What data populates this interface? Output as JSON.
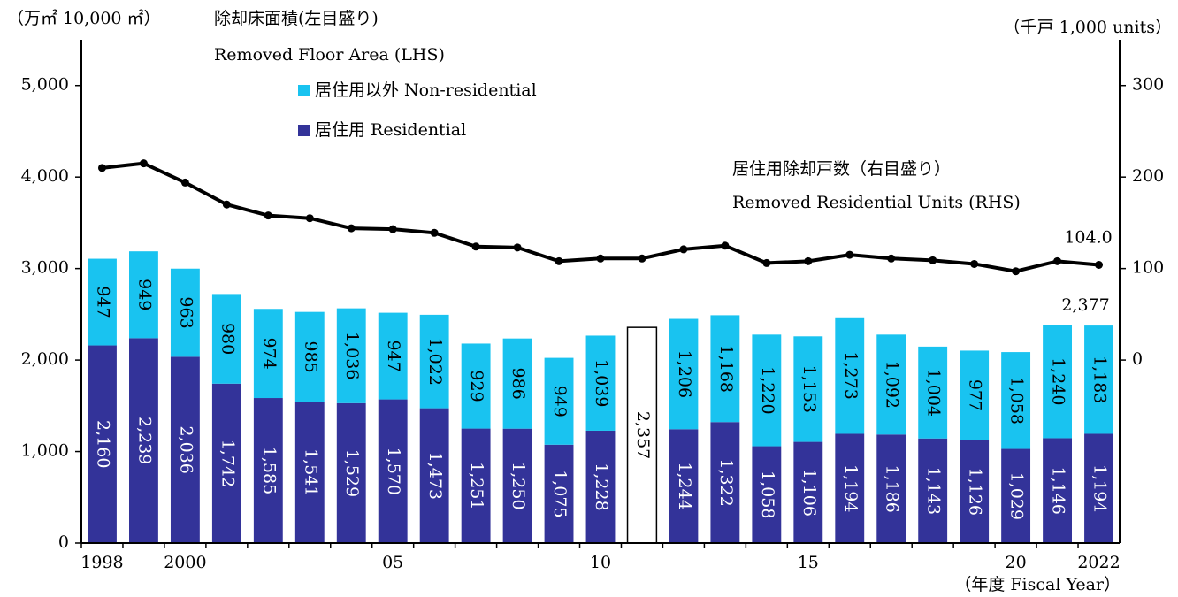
{
  "chart_data": {
    "type": "bar",
    "y_unit": "（万㎡ 10,000 ㎡）",
    "y2_unit": "（千戸 1,000 units）",
    "y_label": [
      "除却床面積(左目盛り)",
      "Removed Floor Area (LHS)"
    ],
    "x_label": "（年度 Fiscal Year）",
    "categories": [
      "1998",
      null,
      "2000",
      null,
      null,
      null,
      null,
      "05",
      null,
      null,
      null,
      null,
      "10",
      null,
      null,
      null,
      null,
      "15",
      null,
      null,
      null,
      null,
      "20",
      null,
      "2022"
    ],
    "series": [
      {
        "name": "居住用 Residential",
        "color": "#333399",
        "label_color": "#ffffff",
        "values": [
          2160,
          2239,
          2036,
          1742,
          1585,
          1541,
          1529,
          1570,
          1473,
          1251,
          1250,
          1075,
          1228,
          null,
          1244,
          1322,
          1058,
          1106,
          1194,
          1186,
          1143,
          1126,
          1029,
          1146,
          1194
        ],
        "value_labels": [
          "2,160",
          "2,239",
          "2,036",
          "1,742",
          "1,585",
          "1,541",
          "1,529",
          "1,570",
          "1,473",
          "1,251",
          "1,250",
          "1,075",
          "1,228",
          null,
          "1,244",
          "1,322",
          "1,058",
          "1,106",
          "1,194",
          "1,186",
          "1,143",
          "1,126",
          "1,029",
          "1,146",
          "1,194"
        ]
      },
      {
        "name": "居住用以外 Non-residential",
        "color": "#19c3f0",
        "label_color": "#000000",
        "values": [
          947,
          949,
          963,
          980,
          974,
          985,
          1036,
          947,
          1022,
          929,
          986,
          949,
          1039,
          null,
          1206,
          1168,
          1220,
          1153,
          1273,
          1092,
          1004,
          977,
          1058,
          1240,
          1183
        ],
        "value_labels": [
          "947",
          "949",
          "963",
          "980",
          "974",
          "985",
          "1,036",
          "947",
          "1,022",
          "929",
          "986",
          "949",
          "1,039",
          null,
          "1,206",
          "1,168",
          "1,220",
          "1,153",
          "1,273",
          "1,092",
          "1,004",
          "977",
          "1,058",
          "1,240",
          "1,183"
        ]
      },
      {
        "color": "#ffffff",
        "label_color": "#000000",
        "values": [
          null,
          null,
          null,
          null,
          null,
          null,
          null,
          null,
          null,
          null,
          null,
          null,
          null,
          2357,
          null,
          null,
          null,
          null,
          null,
          null,
          null,
          null,
          null,
          null,
          null
        ],
        "value_labels": [
          null,
          null,
          null,
          null,
          null,
          null,
          null,
          null,
          null,
          null,
          null,
          null,
          null,
          "2,357",
          null,
          null,
          null,
          null,
          null,
          null,
          null,
          null,
          null,
          null,
          null
        ]
      },
      {
        "name": "居住用除却戸数（右目盛り）",
        "name_en": "Removed Residential Units (RHS)",
        "type": "line",
        "axis": "y2",
        "color": "#000000",
        "values": [
          210,
          215,
          194,
          170,
          158,
          155,
          144,
          143,
          139,
          124,
          123,
          108,
          111,
          111,
          121,
          125,
          106,
          108,
          115,
          111,
          109,
          105,
          97,
          108,
          104
        ],
        "value_labels": [
          null,
          null,
          null,
          null,
          null,
          null,
          null,
          null,
          null,
          null,
          null,
          null,
          null,
          null,
          null,
          null,
          null,
          null,
          null,
          null,
          null,
          null,
          null,
          null,
          "104.0"
        ]
      }
    ],
    "totals": {
      "values": [
        null,
        null,
        null,
        null,
        null,
        null,
        null,
        null,
        null,
        null,
        null,
        null,
        null,
        null,
        null,
        null,
        null,
        null,
        null,
        null,
        null,
        null,
        null,
        null,
        2377
      ],
      "value_labels": [
        null,
        null,
        null,
        null,
        null,
        null,
        null,
        null,
        null,
        null,
        null,
        null,
        null,
        null,
        null,
        null,
        null,
        null,
        null,
        null,
        null,
        null,
        null,
        null,
        "2,377"
      ]
    },
    "ylim": [
      0,
      5500
    ],
    "yticks": [
      0,
      {
        "value": 1000,
        "label": "1,000"
      },
      {
        "value": 2000,
        "label": "2,000"
      },
      {
        "value": 3000,
        "label": "3,000"
      },
      {
        "value": 4000,
        "label": "4,000"
      },
      {
        "value": 5000,
        "label": "5,000"
      }
    ],
    "y2lim": [
      -200,
      350
    ],
    "y2ticks": [
      0,
      100,
      200,
      300
    ],
    "grid": false
  }
}
